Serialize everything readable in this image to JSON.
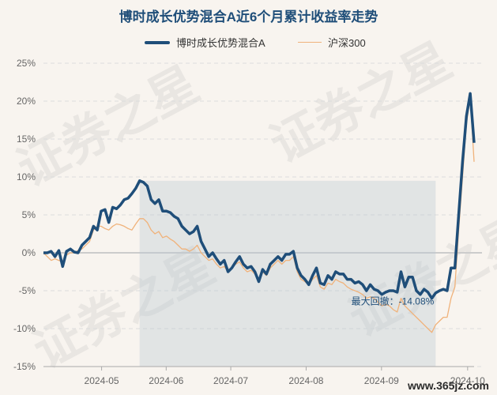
{
  "chart_data": {
    "type": "line",
    "title": "博时成长优势混合A近6个月累计收益率走势",
    "xlabel": "",
    "ylabel": "",
    "ylim": [
      -15,
      25
    ],
    "yticks": [
      "25%",
      "20%",
      "15%",
      "10%",
      "5%",
      "0%",
      "-5%",
      "-10%",
      "-15%"
    ],
    "ytick_values": [
      25,
      20,
      15,
      10,
      5,
      0,
      -5,
      -10,
      -15
    ],
    "xtick_labels": [
      "2024-05",
      "2024-06",
      "2024-07",
      "2024-08",
      "2024-09",
      "2024-10"
    ],
    "grid": true,
    "legend_position": "top-center",
    "series": [
      {
        "name": "博时成长优势混合A",
        "color": "#1f4e79",
        "values": [
          0.0,
          0.0,
          0.2,
          -0.5,
          0.3,
          -1.8,
          0.2,
          0.5,
          0.1,
          0.0,
          1.0,
          1.5,
          2.0,
          3.5,
          3.0,
          5.5,
          5.7,
          4.0,
          6.0,
          5.8,
          6.3,
          7.0,
          7.2,
          7.8,
          8.5,
          9.5,
          9.3,
          8.8,
          7.0,
          6.5,
          7.0,
          5.5,
          5.5,
          5.3,
          4.8,
          4.5,
          3.5,
          3.0,
          2.5,
          2.8,
          3.5,
          1.5,
          0.5,
          -0.5,
          0.0,
          -0.8,
          -1.5,
          -1.0,
          -2.5,
          -2.0,
          -1.2,
          -0.5,
          -1.5,
          -2.0,
          -1.8,
          -2.5,
          -3.8,
          -2.2,
          -2.8,
          -1.5,
          -1.0,
          -0.5,
          -1.0,
          -0.2,
          -0.2,
          0.2,
          -2.0,
          -3.0,
          -3.5,
          -4.2,
          -3.0,
          -2.0,
          -4.0,
          -4.2,
          -3.0,
          -3.5,
          -2.5,
          -2.8,
          -2.8,
          -3.5,
          -3.5,
          -4.0,
          -3.8,
          -4.2,
          -5.0,
          -4.2,
          -4.8,
          -5.0,
          -5.5,
          -5.2,
          -5.0,
          -5.0,
          -5.2,
          -2.5,
          -4.5,
          -3.2,
          -3.2,
          -5.0,
          -5.5,
          -4.8,
          -5.2,
          -6.0,
          -5.3,
          -5.0,
          -4.8,
          -5.0,
          -2.0,
          -2.0,
          5.0,
          12.0,
          18.0,
          21.0,
          14.5
        ]
      },
      {
        "name": "沪深300",
        "color": "#f0b27a",
        "values": [
          0.0,
          -0.5,
          -1.0,
          -0.8,
          -1.0,
          -1.2,
          -0.3,
          0.0,
          0.0,
          0.3,
          0.5,
          1.0,
          1.5,
          3.0,
          3.5,
          3.5,
          3.2,
          3.0,
          3.5,
          3.8,
          3.7,
          3.5,
          3.2,
          3.0,
          3.8,
          4.5,
          4.5,
          4.0,
          3.0,
          2.5,
          2.8,
          2.0,
          2.2,
          1.8,
          1.5,
          1.0,
          0.5,
          0.5,
          0.2,
          0.5,
          1.0,
          0.0,
          -0.5,
          -1.0,
          -0.8,
          -1.5,
          -2.0,
          -1.8,
          -2.5,
          -2.0,
          -1.5,
          -1.2,
          -2.0,
          -2.5,
          -2.3,
          -2.8,
          -3.5,
          -2.5,
          -3.0,
          -2.0,
          -1.5,
          -1.0,
          -1.5,
          -1.0,
          -1.0,
          -0.5,
          -2.5,
          -3.5,
          -3.8,
          -4.2,
          -3.5,
          -3.0,
          -4.5,
          -4.8,
          -4.0,
          -4.2,
          -3.5,
          -3.8,
          -4.0,
          -4.5,
          -4.8,
          -5.0,
          -5.2,
          -5.5,
          -6.0,
          -5.8,
          -6.0,
          -6.5,
          -7.0,
          -6.8,
          -7.0,
          -7.5,
          -7.8,
          -6.0,
          -7.0,
          -7.5,
          -8.0,
          -8.5,
          -9.0,
          -9.5,
          -10.0,
          -10.5,
          -9.5,
          -9.0,
          -8.5,
          -8.5,
          -6.0,
          -4.5,
          3.0,
          10.0,
          17.0,
          20.5,
          12.0
        ]
      }
    ],
    "max_drawdown": {
      "label": "最大回撤：-14.08%",
      "start_index": 25,
      "end_index": 102
    }
  },
  "watermark": "证券之星",
  "footer_text": "www.365jz.com"
}
